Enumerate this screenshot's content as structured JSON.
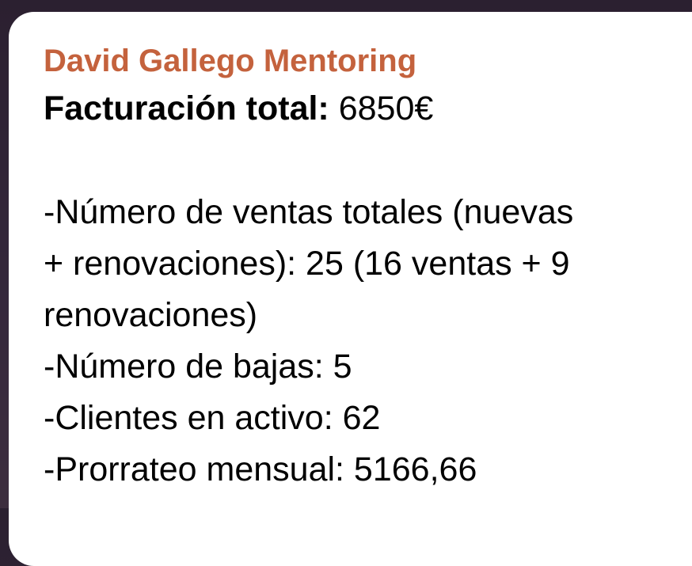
{
  "message": {
    "sender": "David Gallego Mentoring",
    "headline_label": "Facturación total:",
    "headline_value": "6850€",
    "lines": [
      "-Número de ventas totales (nuevas",
      "+ renovaciones): 25 (16 ventas + 9",
      "renovaciones)",
      "-Número de bajas: 5",
      "-Clientes en activo: 62",
      "-Prorrateo mensual: 5166,66"
    ]
  },
  "colors": {
    "sender": "#c4623d",
    "bubble": "#ffffff",
    "background": "#2e2336"
  }
}
